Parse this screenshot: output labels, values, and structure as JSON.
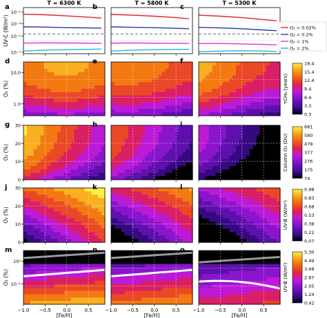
{
  "figure": {
    "column_titles": [
      "T = 6300 K",
      "T = 5800 K",
      "T = 5300 K"
    ],
    "x_ticks": [
      "−1.0",
      "−0.5",
      "0.0",
      "0.5"
    ],
    "x_label": "[Fe/H]"
  },
  "rows": [
    {
      "panels": [
        "a",
        "b",
        "c"
      ],
      "y_label": "UV-C (W/m²)",
      "y_ticks": [
        "10⁻¹",
        "10⁻³",
        "10⁻⁵",
        "10⁻⁷"
      ],
      "colorbar": null,
      "legend": [
        "O₂ = 0.02%",
        "O₂ = 0.2%",
        "O₂ = 1%",
        "O₂ = 2%"
      ]
    },
    {
      "panels": [
        "d",
        "e",
        "f"
      ],
      "y_label": "O₂ (%)",
      "y_ticks": [
        "10.0",
        "1.0"
      ],
      "colorbar": {
        "label": "τCH₄ (years)",
        "ticks": [
          "18.4",
          "15.4",
          "12.4",
          "9.4",
          "6.4",
          "3.3",
          "0.3"
        ]
      }
    },
    {
      "panels": [
        "g",
        "h",
        "i"
      ],
      "y_label": "O₂ (%)",
      "y_ticks": [
        "30",
        "20",
        "10",
        "0"
      ],
      "colorbar": {
        "label": "Column O₃ (DU)",
        "ticks": [
          "681",
          "580",
          "478",
          "377",
          "276",
          "175",
          "74"
        ]
      }
    },
    {
      "panels": [
        "j",
        "k",
        "l"
      ],
      "y_label": "O₂ (%)",
      "y_ticks": [
        "30",
        "20",
        "10",
        "0"
      ],
      "colorbar": {
        "label": "UV-B (W/m²)",
        "ticks": [
          "0.98",
          "0.83",
          "0.68",
          "0.53",
          "0.38",
          "0.22",
          "0.07"
        ]
      }
    },
    {
      "panels": [
        "m",
        "n",
        "o"
      ],
      "y_label": "O₂ (%)",
      "y_ticks": [
        "10⁰",
        "10⁻¹"
      ],
      "colorbar": {
        "label": "UV-B (W/m²)",
        "ticks": [
          "5.30",
          "4.49",
          "3.68",
          "2.87",
          "2.05",
          "1.24",
          "0.42"
        ]
      }
    }
  ],
  "chart_data": {
    "type": "line",
    "title": "",
    "xlabel": "[Fe/H]",
    "ylabel": "UV-C (W/m²)",
    "x": [
      -1.0,
      -0.5,
      0.0,
      0.5,
      0.8
    ],
    "ylog": true,
    "ylim": [
      1e-07,
      1
    ],
    "legend_position": "right",
    "panels": [
      {
        "label": "a",
        "title": "T = 6300 K",
        "series": [
          {
            "name": "O₂ = 0.02%",
            "color": "#e8202a",
            "values": [
              0.1,
              0.08,
              0.055,
              0.035,
              0.025
            ]
          },
          {
            "name": "O₂ = 0.2%",
            "color": "#2a3aa8",
            "values": [
              0.0012,
              0.0011,
              0.0009,
              0.0008,
              0.00075
            ]
          },
          {
            "name": "O₂ = 1%",
            "color": "#e030d8",
            "values": [
              4e-06,
              4.5e-06,
              4.2e-06,
              4e-06,
              3.8e-06
            ]
          },
          {
            "name": "O₂ = 2%",
            "color": "#19b8d8",
            "values": [
              2.5e-07,
              3.5e-07,
              4e-07,
              4.5e-07,
              5e-07
            ]
          }
        ]
      },
      {
        "label": "b",
        "title": "T = 5800 K",
        "series": [
          {
            "name": "O₂ = 0.02%",
            "color": "#e8202a",
            "values": [
              0.09,
              0.07,
              0.05,
              0.03,
              0.02
            ]
          },
          {
            "name": "O₂ = 0.2%",
            "color": "#2a3aa8",
            "values": [
              0.0012,
              0.001,
              0.0009,
              0.0007,
              0.0006
            ]
          },
          {
            "name": "O₂ = 1%",
            "color": "#e030d8",
            "values": [
              4e-06,
              4.2e-06,
              4e-06,
              3.8e-06,
              3.5e-06
            ]
          },
          {
            "name": "O₂ = 2%",
            "color": "#19b8d8",
            "values": [
              2.5e-07,
              3.5e-07,
              4e-07,
              4.3e-07,
              4.5e-07
            ]
          }
        ]
      },
      {
        "label": "c",
        "title": "T = 5300 K",
        "series": [
          {
            "name": "O₂ = 0.02%",
            "color": "#e8202a",
            "values": [
              0.07,
              0.05,
              0.03,
              0.015,
              0.01
            ]
          },
          {
            "name": "O₂ = 0.2%",
            "color": "#2a3aa8",
            "values": [
              0.001,
              0.0008,
              0.0006,
              0.0004,
              0.0003
            ]
          },
          {
            "name": "O₂ = 1%",
            "color": "#e030d8",
            "values": [
              3.5e-06,
              3.5e-06,
              3e-06,
              2.5e-06,
              2.2e-06
            ]
          },
          {
            "name": "O₂ = 2%",
            "color": "#19b8d8",
            "values": [
              2e-07,
              2.5e-07,
              2.8e-07,
              2.5e-07,
              2.2e-07
            ]
          }
        ]
      }
    ],
    "heatmap_rows": [
      {
        "panels": [
          "d",
          "e",
          "f"
        ],
        "colorbar_label": "τCH₄ (years)",
        "range": [
          0.3,
          18.4
        ],
        "ylog": true,
        "ylim": [
          0.5,
          20
        ],
        "y_ticks": [
          10,
          1
        ]
      },
      {
        "panels": [
          "g",
          "h",
          "i"
        ],
        "colorbar_label": "Column O₃ (DU)",
        "range": [
          74,
          681
        ],
        "ylog": false,
        "ylim": [
          0,
          30
        ],
        "y_ticks": [
          30,
          20,
          10,
          0
        ]
      },
      {
        "panels": [
          "j",
          "k",
          "l"
        ],
        "colorbar_label": "UV-B (W/m²)",
        "range": [
          0.07,
          0.98
        ],
        "ylog": false,
        "ylim": [
          0,
          30
        ],
        "y_ticks": [
          30,
          20,
          10,
          0
        ]
      },
      {
        "panels": [
          "m",
          "n",
          "o"
        ],
        "colorbar_label": "UV-B (W/m²)",
        "range": [
          0.42,
          5.3
        ],
        "ylog": true,
        "ylim": [
          0.02,
          3
        ],
        "y_ticks": [
          1,
          0.1
        ]
      }
    ]
  }
}
